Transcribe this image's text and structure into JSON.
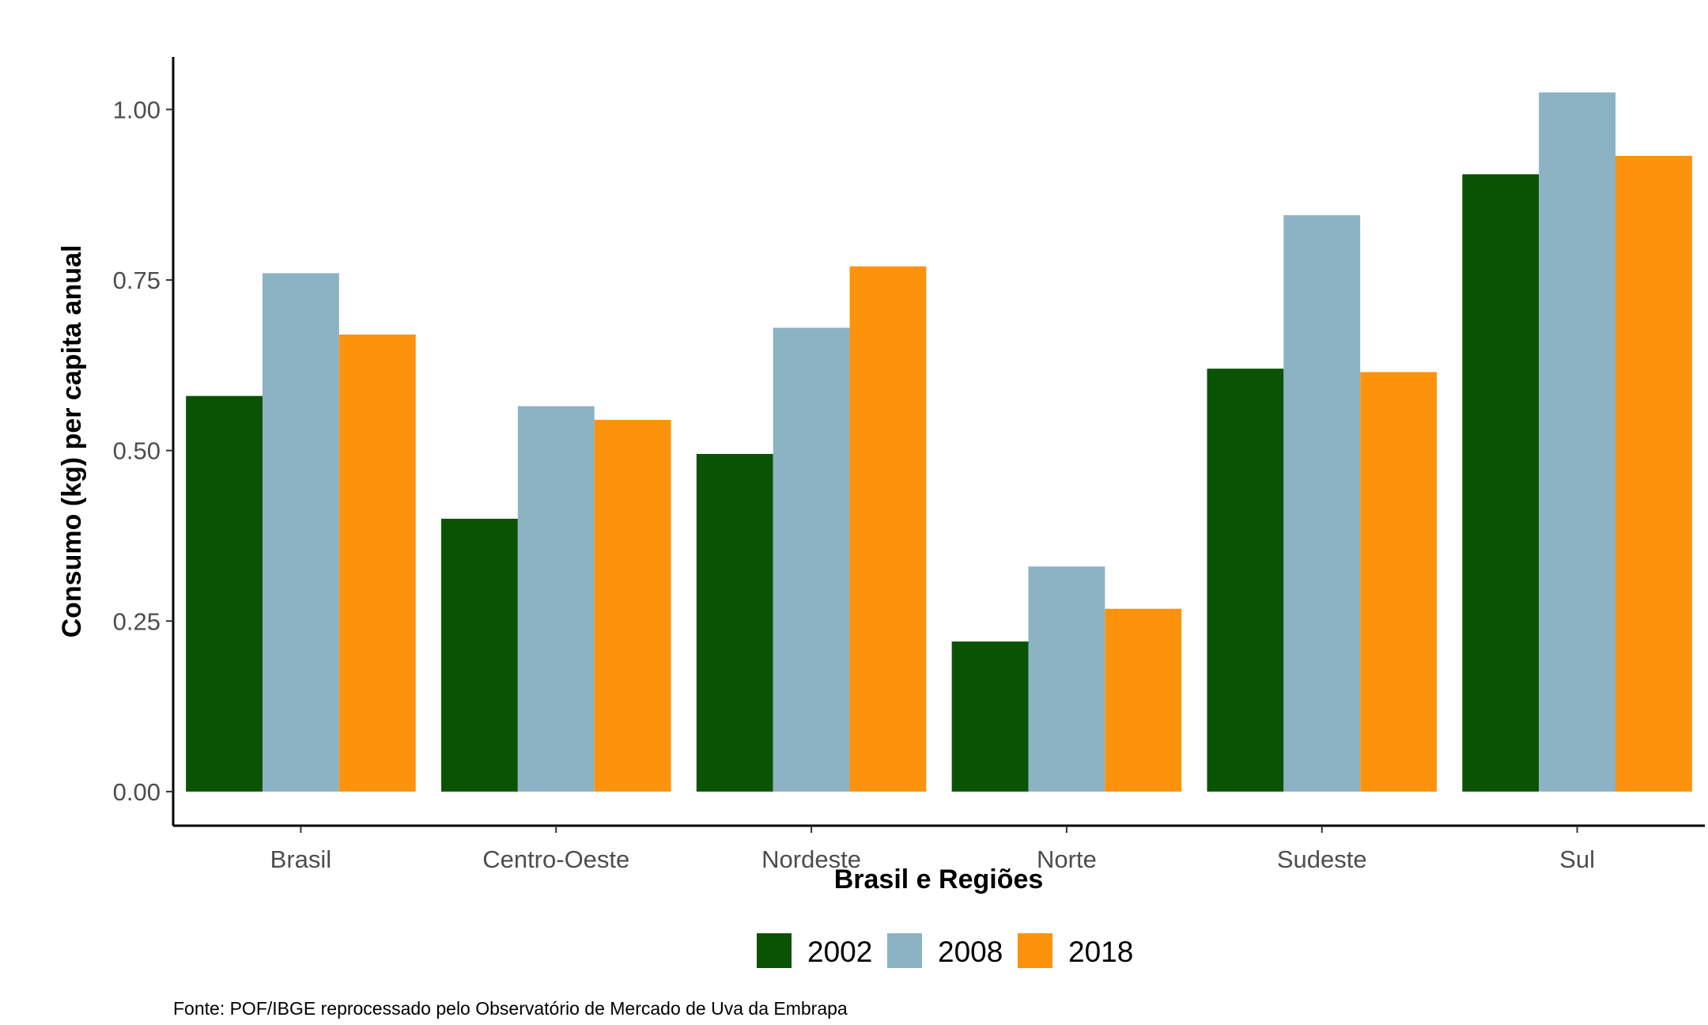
{
  "chart_data": {
    "type": "bar",
    "title": "",
    "xlabel": "Brasil e Regiões",
    "ylabel": "Consumo (kg) per capita anual",
    "categories": [
      "Brasil",
      "Centro-Oeste",
      "Nordeste",
      "Norte",
      "Sudeste",
      "Sul"
    ],
    "series": [
      {
        "name": "2002",
        "color": "#0b5304",
        "values": [
          0.58,
          0.4,
          0.495,
          0.22,
          0.62,
          0.905
        ]
      },
      {
        "name": "2008",
        "color": "#8bb3c3",
        "values": [
          0.76,
          0.565,
          0.68,
          0.33,
          0.845,
          1.025
        ]
      },
      {
        "name": "2018",
        "color": "#fd920d",
        "values": [
          0.67,
          0.545,
          0.77,
          0.268,
          0.615,
          0.932
        ]
      }
    ],
    "ylim": [
      -0.05,
      1.077
    ],
    "yticks": [
      0.0,
      0.25,
      0.5,
      0.75,
      1.0
    ],
    "ytick_labels": [
      "0.00",
      "0.25",
      "0.50",
      "0.75",
      "1.00"
    ],
    "grid": false,
    "legend_position": "bottom"
  },
  "source_note": "Fonte: POF/IBGE reprocessado pelo Observatório de Mercado de Uva da Embrapa"
}
